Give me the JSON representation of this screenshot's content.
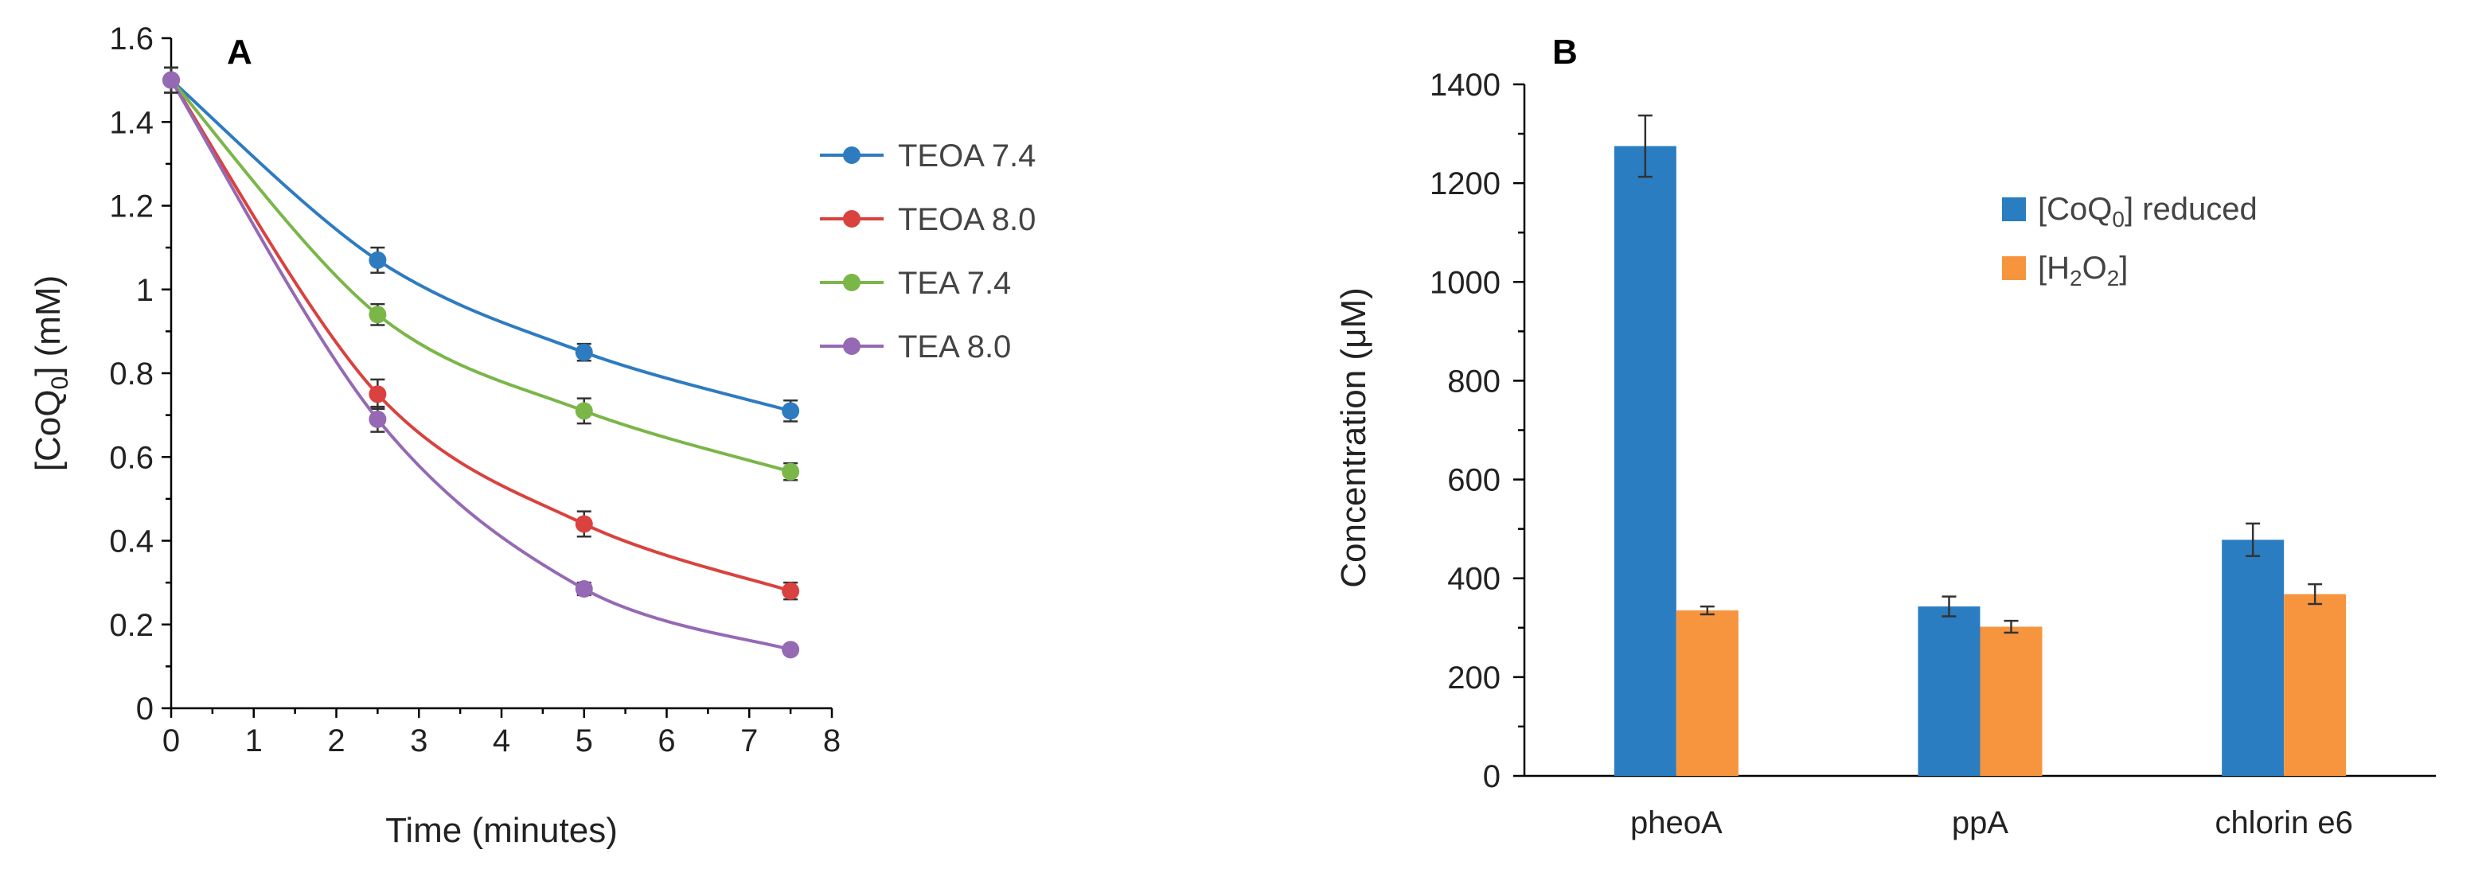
{
  "chart_data": [
    {
      "panel": "A",
      "type": "line",
      "title": "",
      "xlabel": "Time (minutes)",
      "ylabel_main": "[CoQ",
      "ylabel_sub": "0",
      "ylabel_tail": "] (mM)",
      "xlim": [
        0,
        8
      ],
      "ylim": [
        0,
        1.6
      ],
      "xticks": [
        0,
        1,
        2,
        3,
        4,
        5,
        6,
        7,
        8
      ],
      "yticks": [
        0,
        0.2,
        0.4,
        0.6,
        0.8,
        1,
        1.2,
        1.4,
        1.6
      ],
      "x": [
        0,
        2.5,
        5,
        7.5
      ],
      "series": [
        {
          "name": "TEOA 7.4",
          "color": "#2e7bc0",
          "values": [
            1.5,
            1.07,
            0.85,
            0.71
          ],
          "errors": [
            0.03,
            0.03,
            0.02,
            0.025
          ]
        },
        {
          "name": "TEOA 8.0",
          "color": "#d9423f",
          "values": [
            1.5,
            0.75,
            0.44,
            0.28
          ],
          "errors": [
            0.03,
            0.035,
            0.03,
            0.02
          ]
        },
        {
          "name": "TEA 7.4",
          "color": "#7ab648",
          "values": [
            1.5,
            0.94,
            0.71,
            0.565
          ],
          "errors": [
            0.03,
            0.025,
            0.03,
            0.02
          ]
        },
        {
          "name": "TEA 8.0",
          "color": "#9569b4",
          "values": [
            1.5,
            0.69,
            0.285,
            0.14
          ],
          "errors": [
            0.03,
            0.03,
            0.015,
            0.01
          ]
        }
      ]
    },
    {
      "panel": "B",
      "type": "bar",
      "title": "",
      "xlabel": "",
      "ylabel": "Concentration (μM)",
      "ylim": [
        0,
        1400
      ],
      "yticks": [
        0,
        200,
        400,
        600,
        800,
        1000,
        1200,
        1400
      ],
      "categories": [
        "pheoA",
        "ppA",
        "chlorin e6"
      ],
      "series": [
        {
          "name_main": "[CoQ",
          "name_sub": "0",
          "name_tail": "] reduced",
          "color": "#2a7dc1",
          "values": [
            1275,
            343,
            478
          ],
          "errors": [
            62,
            20,
            33
          ]
        },
        {
          "name_main": "[H",
          "name_sub": "2",
          "name_mid": "O",
          "name_sub2": "2",
          "name_tail": "]",
          "color": "#f7953f",
          "values": [
            335,
            302,
            368
          ],
          "errors": [
            8,
            12,
            20
          ]
        }
      ]
    }
  ]
}
